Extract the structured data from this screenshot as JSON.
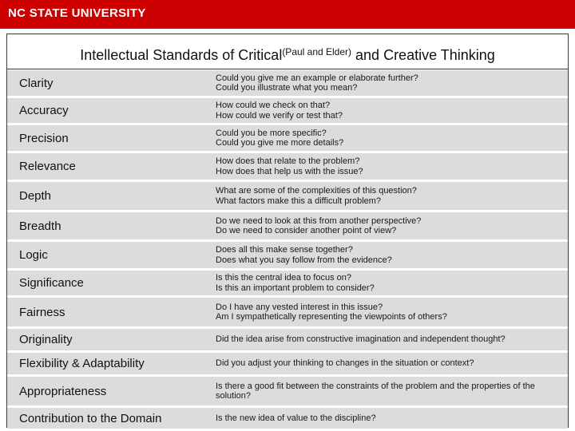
{
  "header": {
    "logo_text": "NC STATE UNIVERSITY",
    "brand_color": "#cc0000"
  },
  "title": {
    "main": "Intellectual Standards of Critical",
    "superscript": "(Paul and Elder)",
    "tail": " and Creative Thinking"
  },
  "standards": [
    {
      "term": "Clarity",
      "questions": [
        "Could you give me an example or elaborate further?",
        "Could you illustrate what you mean?"
      ]
    },
    {
      "term": "Accuracy",
      "questions": [
        "How could we check on that?",
        "How could we verify or test that?"
      ]
    },
    {
      "term": "Precision",
      "questions": [
        "Could you be more specific?",
        "Could you give me more details?"
      ]
    },
    {
      "term": "Relevance",
      "questions": [
        "How does that relate to the problem?",
        "How does that help us with the issue?"
      ]
    },
    {
      "term": "Depth",
      "questions": [
        "What are some of the complexities of this question?",
        "What factors make this a difficult problem?"
      ]
    },
    {
      "term": "Breadth",
      "questions": [
        "Do we need to look at this from another perspective?",
        "Do we need to consider another point of view?"
      ]
    },
    {
      "term": "Logic",
      "questions": [
        "Does all this make sense together?",
        "Does what you say follow from the evidence?"
      ]
    },
    {
      "term": "Significance",
      "questions": [
        "Is this the central idea to focus on?",
        "Is this an important problem to consider?"
      ]
    },
    {
      "term": "Fairness",
      "questions": [
        "Do I have any vested interest in this issue?",
        "Am I sympathetically representing the viewpoints of others?"
      ]
    },
    {
      "term": "Originality",
      "questions": [
        "Did the idea arise from constructive imagination and independent thought?"
      ]
    },
    {
      "term": "Flexibility & Adaptability",
      "questions": [
        "Did you adjust your thinking to changes in the situation or context?"
      ]
    },
    {
      "term": "Appropriateness",
      "questions": [
        "Is there a good fit between the constraints of the problem and the properties of the solution?"
      ]
    },
    {
      "term": "Contribution to the Domain",
      "questions": [
        "Is the new idea of value to the discipline?"
      ]
    }
  ]
}
